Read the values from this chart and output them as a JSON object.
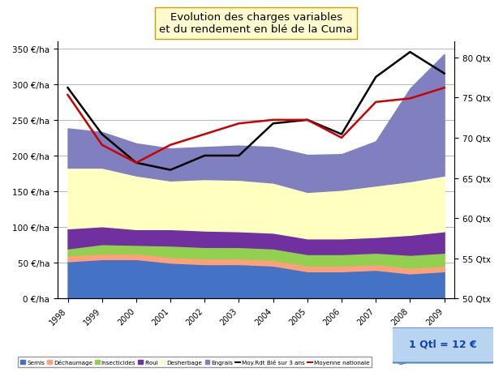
{
  "title": "Evolution des charges variables\net du rendement en blé de la Cuma",
  "years": [
    1998,
    1999,
    2000,
    2001,
    2002,
    2003,
    2004,
    2005,
    2006,
    2007,
    2008,
    2009
  ],
  "semis": [
    52,
    55,
    55,
    50,
    48,
    48,
    46,
    38,
    38,
    40,
    35,
    38
  ],
  "dechaumage": [
    8,
    8,
    8,
    8,
    8,
    8,
    8,
    8,
    8,
    8,
    8,
    8
  ],
  "insecticides": [
    10,
    13,
    12,
    16,
    16,
    16,
    16,
    16,
    16,
    16,
    18,
    18
  ],
  "fioul": [
    28,
    25,
    22,
    23,
    23,
    22,
    22,
    22,
    22,
    22,
    28,
    30
  ],
  "desherbage": [
    85,
    82,
    75,
    68,
    72,
    72,
    70,
    65,
    68,
    72,
    75,
    78
  ],
  "engrais": [
    55,
    50,
    45,
    45,
    45,
    48,
    50,
    52,
    50,
    62,
    130,
    170
  ],
  "black_line": [
    295,
    230,
    190,
    180,
    200,
    200,
    245,
    250,
    230,
    310,
    345,
    315
  ],
  "red_line": [
    285,
    215,
    190,
    215,
    230,
    245,
    250,
    250,
    225,
    275,
    280,
    295
  ],
  "ylim_left": [
    0,
    360
  ],
  "ylim_right": [
    50,
    82
  ],
  "yticks_left": [
    0,
    50,
    100,
    150,
    200,
    250,
    300,
    350
  ],
  "yticks_left_labels": [
    "0 €/ha",
    "50 €/ha",
    "100 €/ha",
    "150 €/ha",
    "200 €/ha",
    "250 €/ha",
    "300 €/ha",
    "350 €/ha"
  ],
  "yticks_right": [
    50,
    55,
    60,
    65,
    70,
    75,
    80
  ],
  "yticks_right_labels": [
    "50 Qtx",
    "55 Qtx",
    "60 Qtx",
    "65 Qtx",
    "70 Qtx",
    "75 Qtx",
    "80 Qtx"
  ],
  "color_semis": "#4472C4",
  "color_dechaumage": "#FFA07A",
  "color_insecticides": "#92D050",
  "color_fioul": "#7030A0",
  "color_desherbage": "#FFFFC0",
  "color_engrais": "#8080C0",
  "color_black_line": "#000000",
  "color_red_line": "#CC0000",
  "background_color": "#FFFFFF",
  "note": "1 Qtl = 12 €",
  "fig_width": 6.2,
  "fig_height": 4.6,
  "dpi": 100
}
